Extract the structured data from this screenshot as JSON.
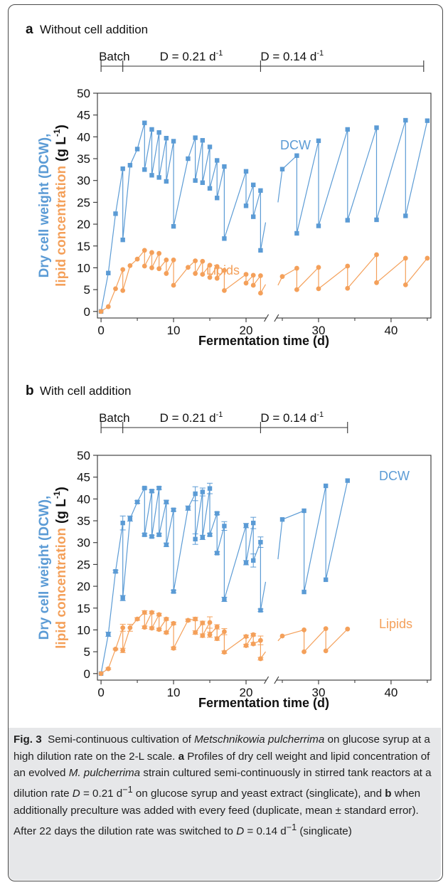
{
  "colors": {
    "dcw": "#5b9bd5",
    "lipids": "#f4a05a",
    "axis": "#333333"
  },
  "charts": [
    {
      "panel_letter": "a",
      "panel_title": "Without cell addition",
      "phases": [
        {
          "label": "Batch",
          "start": 0,
          "end": 3
        },
        {
          "label": "D = 0.21 d",
          "sup": "-1",
          "start": 3,
          "end": 22
        },
        {
          "label": "D = 0.14 d",
          "sup": "-1",
          "start": 22,
          "end": 44.5
        }
      ],
      "xlabel": "Fermentation time (d)",
      "ylabel_part1": "Dry cell weight (DCW),",
      "ylabel_part2": "lipid concentration",
      "ylabel_unit": "(g L",
      "ylabel_unit_sup": "-1",
      "ylabel_unit_end": ")",
      "xticks": [
        "0",
        "10",
        "20",
        "30",
        "40"
      ],
      "yticks": [
        "0",
        "5",
        "10",
        "15",
        "20",
        "25",
        "30",
        "35",
        "40",
        "45",
        "50"
      ],
      "dcw_label": "DCW",
      "lipid_label": "Lipids"
    },
    {
      "panel_letter": "b",
      "panel_title": "With cell addition",
      "phases": [
        {
          "label": "Batch",
          "start": 0,
          "end": 3
        },
        {
          "label": "D = 0.21 d",
          "sup": "-1",
          "start": 3,
          "end": 22
        },
        {
          "label": "D = 0.14 d",
          "sup": "-1",
          "start": 22,
          "end": 34
        }
      ],
      "xlabel": "Fermentation time (d)",
      "ylabel_part1": "Dry cell weight (DCW),",
      "ylabel_part2": "lipid concentration",
      "ylabel_unit": "(g L",
      "ylabel_unit_sup": "-1",
      "ylabel_unit_end": ")",
      "xticks": [
        "0",
        "10",
        "20",
        "30",
        "40"
      ],
      "yticks": [
        "0",
        "5",
        "10",
        "15",
        "20",
        "25",
        "30",
        "35",
        "40",
        "45",
        "50"
      ],
      "dcw_label": "DCW",
      "lipid_label": "Lipids"
    }
  ],
  "chart_data": [
    {
      "type": "line",
      "title": "Without cell addition",
      "xlabel": "Fermentation time (d)",
      "ylabel": "Dry cell weight (DCW), lipid concentration (g L-1)",
      "xlim": [
        -0.5,
        45.5
      ],
      "ylim": [
        -1.5,
        50
      ],
      "axis_break": [
        22.8,
        24.2
      ],
      "series": [
        {
          "name": "DCW",
          "segments": [
            [
              [
                0,
                0
              ],
              [
                1,
                8.8
              ],
              [
                2,
                22.4
              ],
              [
                3,
                32.7
              ],
              [
                3,
                16.4
              ],
              [
                4,
                33.5
              ],
              [
                5,
                37.2
              ],
              [
                6,
                43.2
              ],
              [
                6,
                32.5
              ],
              [
                7,
                41.7
              ],
              [
                7,
                31.2
              ],
              [
                8,
                41.0
              ],
              [
                8,
                30.7
              ],
              [
                9,
                39.7
              ],
              [
                9,
                29.8
              ],
              [
                10,
                39.0
              ],
              [
                10,
                19.5
              ],
              [
                12,
                35.0
              ],
              [
                13,
                39.8
              ],
              [
                13,
                30.0
              ],
              [
                14,
                39.2
              ],
              [
                14,
                29.5
              ],
              [
                15,
                37.7
              ],
              [
                15,
                28.2
              ],
              [
                16,
                34.6
              ],
              [
                16,
                26.0
              ],
              [
                17,
                33.2
              ],
              [
                17,
                16.7
              ],
              [
                20,
                32.1
              ],
              [
                20,
                24.2
              ],
              [
                21,
                29.0
              ],
              [
                21,
                21.7
              ],
              [
                22,
                27.7
              ],
              [
                22,
                14.0
              ],
              [
                22.7,
                20.4
              ]
            ],
            [
              [
                24.4,
                25.0
              ],
              [
                25,
                32.6
              ],
              [
                27,
                35.7
              ],
              [
                27,
                17.9
              ],
              [
                30,
                39.1
              ],
              [
                30,
                19.6
              ],
              [
                34,
                41.7
              ],
              [
                34,
                20.9
              ],
              [
                38,
                42.1
              ],
              [
                38,
                21.0
              ],
              [
                42,
                43.8
              ],
              [
                42,
                21.9
              ],
              [
                45,
                43.7
              ]
            ]
          ]
        },
        {
          "name": "Lipids",
          "segments": [
            [
              [
                0,
                0
              ],
              [
                1,
                1.1
              ],
              [
                2,
                5.2
              ],
              [
                3,
                9.6
              ],
              [
                3,
                4.8
              ],
              [
                4,
                10.5
              ],
              [
                5,
                12.0
              ],
              [
                6,
                14.0
              ],
              [
                6,
                10.4
              ],
              [
                7,
                13.5
              ],
              [
                7,
                10.0
              ],
              [
                8,
                13.3
              ],
              [
                8,
                9.8
              ],
              [
                9,
                11.8
              ],
              [
                9,
                8.7
              ],
              [
                10,
                11.8
              ],
              [
                10,
                6.0
              ],
              [
                12,
                10.1
              ],
              [
                13,
                11.6
              ],
              [
                13,
                8.7
              ],
              [
                14,
                11.5
              ],
              [
                14,
                8.5
              ],
              [
                15,
                10.6
              ],
              [
                15,
                7.8
              ],
              [
                16,
                10.3
              ],
              [
                16,
                7.6
              ],
              [
                17,
                9.4
              ],
              [
                17,
                4.8
              ],
              [
                20,
                8.5
              ],
              [
                20,
                6.5
              ],
              [
                21,
                8.3
              ],
              [
                21,
                6.0
              ],
              [
                22,
                8.2
              ],
              [
                22,
                4.2
              ],
              [
                22.7,
                6.2
              ]
            ],
            [
              [
                24.4,
                6.0
              ],
              [
                25,
                8.0
              ],
              [
                27,
                9.9
              ],
              [
                27,
                5.0
              ],
              [
                30,
                10.1
              ],
              [
                30,
                5.2
              ],
              [
                34,
                10.4
              ],
              [
                34,
                5.3
              ],
              [
                38,
                13.0
              ],
              [
                38,
                6.6
              ],
              [
                42,
                12.2
              ],
              [
                42,
                6.1
              ],
              [
                45,
                12.2
              ]
            ]
          ]
        }
      ]
    },
    {
      "type": "line",
      "title": "With cell addition",
      "xlabel": "Fermentation time (d)",
      "ylabel": "Dry cell weight (DCW), lipid concentration (g L-1)",
      "xlim": [
        -0.5,
        45.5
      ],
      "ylim": [
        -1.5,
        50
      ],
      "axis_break": [
        22.8,
        24.2
      ],
      "series": [
        {
          "name": "DCW",
          "error_bars": true,
          "segments": [
            [
              [
                0,
                0,
                0
              ],
              [
                1,
                9.0,
                0.5
              ],
              [
                2,
                23.4,
                0.3
              ],
              [
                3,
                34.5,
                1.6
              ],
              [
                3,
                17.3,
                0.6
              ],
              [
                4,
                35.5,
                0.6
              ],
              [
                5,
                39.3,
                0.3
              ],
              [
                6,
                42.5,
                0.2
              ],
              [
                6,
                31.8,
                0.3
              ],
              [
                7,
                41.8,
                0.3
              ],
              [
                7,
                31.4,
                0.3
              ],
              [
                8,
                42.5,
                0.3
              ],
              [
                8,
                31.8,
                0.3
              ],
              [
                9,
                39.3,
                0.4
              ],
              [
                9,
                29.5,
                0.4
              ],
              [
                10,
                37.5,
                0.3
              ],
              [
                10,
                18.8,
                0.3
              ],
              [
                12,
                37.9,
                0.5
              ],
              [
                13,
                41.2,
                1.6
              ],
              [
                13,
                30.8,
                1.2
              ],
              [
                14,
                41.6,
                0.9
              ],
              [
                14,
                31.2,
                0.5
              ],
              [
                15,
                42.4,
                1.2
              ],
              [
                15,
                31.8,
                0.3
              ],
              [
                16,
                36.7,
                0.3
              ],
              [
                16,
                27.6,
                0.3
              ],
              [
                17,
                33.8,
                1.0
              ],
              [
                17,
                17.0,
                0.5
              ],
              [
                20,
                33.9,
                0.5
              ],
              [
                20,
                25.4,
                0.5
              ],
              [
                21,
                34.5,
                1.3
              ],
              [
                21,
                25.9,
                1.5
              ],
              [
                22,
                30.1,
                1.2
              ],
              [
                22,
                14.5,
                0.3
              ],
              [
                22.7,
                21.0,
                0
              ]
            ],
            [
              [
                24.4,
                26.2,
                0
              ],
              [
                25,
                35.3,
                0
              ],
              [
                28,
                37.3,
                0
              ],
              [
                28,
                18.7,
                0
              ],
              [
                31,
                43.0,
                0
              ],
              [
                31,
                21.5,
                0
              ],
              [
                34,
                44.2,
                0
              ]
            ]
          ]
        },
        {
          "name": "Lipids",
          "error_bars": true,
          "segments": [
            [
              [
                0,
                0,
                0
              ],
              [
                1,
                1.1,
                0.2
              ],
              [
                2,
                5.6,
                0.2
              ],
              [
                3,
                10.5,
                0.8
              ],
              [
                3,
                5.3,
                0.5
              ],
              [
                4,
                10.5,
                0.8
              ],
              [
                5,
                12.5,
                0.3
              ],
              [
                6,
                14.0,
                0.4
              ],
              [
                6,
                10.6,
                0.3
              ],
              [
                7,
                14.0,
                0.3
              ],
              [
                7,
                10.4,
                0.3
              ],
              [
                8,
                13.5,
                0.3
              ],
              [
                8,
                10.1,
                0.3
              ],
              [
                9,
                12.5,
                0.3
              ],
              [
                9,
                9.4,
                0.3
              ],
              [
                10,
                11.5,
                0.3
              ],
              [
                10,
                5.8,
                0.3
              ],
              [
                12,
                12.2,
                0.3
              ],
              [
                13,
                12.5,
                0.4
              ],
              [
                13,
                9.4,
                0.4
              ],
              [
                14,
                11.6,
                0.4
              ],
              [
                14,
                8.7,
                0.4
              ],
              [
                15,
                11.7,
                1.3
              ],
              [
                15,
                8.9,
                0.6
              ],
              [
                16,
                10.7,
                0.5
              ],
              [
                16,
                8.0,
                0.4
              ],
              [
                17,
                9.6,
                0.7
              ],
              [
                17,
                4.9,
                0.3
              ],
              [
                20,
                8.5,
                0.3
              ],
              [
                20,
                6.4,
                0.3
              ],
              [
                21,
                8.9,
                0.3
              ],
              [
                21,
                6.8,
                0.3
              ],
              [
                22,
                7.6,
                1.0
              ],
              [
                22,
                3.4,
                0.3
              ],
              [
                22.7,
                5.0,
                0
              ]
            ],
            [
              [
                24.4,
                7.5,
                0
              ],
              [
                25,
                8.6,
                0
              ],
              [
                28,
                10.0,
                0
              ],
              [
                28,
                5.0,
                0
              ],
              [
                31,
                10.3,
                0
              ],
              [
                31,
                5.2,
                0
              ],
              [
                34,
                10.2,
                0
              ]
            ]
          ]
        }
      ]
    }
  ],
  "caption": {
    "fig_label": "Fig. 3",
    "t1": "Semi-continuous cultivation of ",
    "species": "Metschnikowia pulcherrima",
    "t2": " on glucose syrup at a high dilution rate on the 2-L scale. ",
    "panel_a": "a",
    "t3": " Profiles of dry cell weight and lipid concentration of an evolved ",
    "species_abbr": "M. pulcherrima",
    "t4": " strain cultured semi-continuously in stirred tank reactors at a dilution rate ",
    "d_symbol": "D",
    "t5": " = 0.21 d",
    "t5_sup": "−1",
    "t6": " on glucose syrup and yeast extract (singlicate), and ",
    "panel_b": "b",
    "t7": " when additionally preculture was added with every feed (duplicate, mean ± standard error). After 22 days the dilution rate was switched to ",
    "d_symbol2": "D",
    "t8": " = 0.14 d",
    "t8_sup": "−1",
    "t9": " (singlicate)"
  }
}
